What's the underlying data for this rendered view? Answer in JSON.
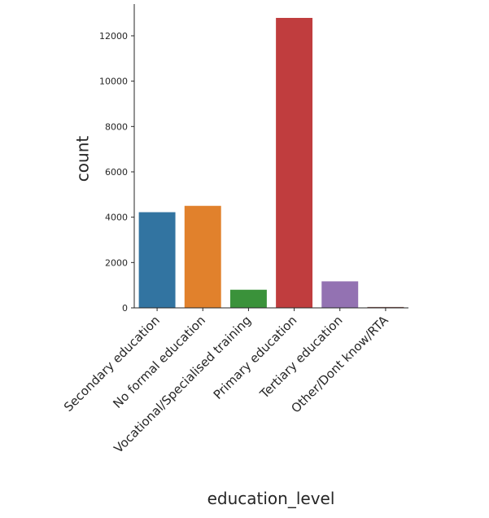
{
  "chart_data": {
    "type": "bar",
    "categories": [
      "Secondary education",
      "No formal education",
      "Vocational/Specialised training",
      "Primary education",
      "Tertiary education",
      "Other/Dont know/RTA"
    ],
    "values": [
      4220,
      4500,
      800,
      12790,
      1170,
      40
    ],
    "colors": [
      "#3274a1",
      "#e1812c",
      "#3a923a",
      "#c03d3e",
      "#9372b2",
      "#845b53"
    ],
    "xlabel": "education_level",
    "ylabel": "count",
    "ylim": [
      0,
      13400
    ],
    "yticks": [
      0,
      2000,
      4000,
      6000,
      8000,
      10000,
      12000
    ],
    "grid": false,
    "legend": "none"
  }
}
